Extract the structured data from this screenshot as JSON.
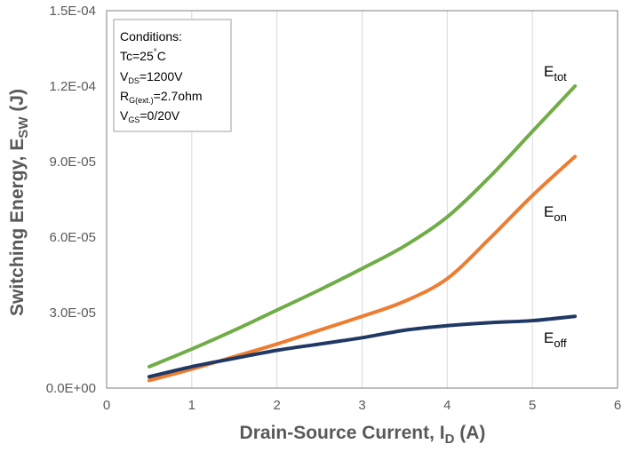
{
  "chart_data": {
    "type": "line",
    "xlabel_main": "Drain-Source Current, I",
    "xlabel_sub": "D",
    "xlabel_tail": " (A)",
    "ylabel_main": "Switching Energy, E",
    "ylabel_sub": "SW",
    "ylabel_tail": " (J)",
    "xlim": [
      0,
      6
    ],
    "ylim": [
      0,
      0.00015
    ],
    "x_ticks": [
      0,
      1,
      2,
      3,
      4,
      5,
      6
    ],
    "x_tick_labels": [
      "0",
      "1",
      "2",
      "3",
      "4",
      "5",
      "6"
    ],
    "y_ticks": [
      0,
      3e-05,
      6e-05,
      9e-05,
      0.00012,
      0.00015
    ],
    "y_tick_labels": [
      "0.0E+00",
      "3.0E-05",
      "6.0E-05",
      "9.0E-05",
      "1.2E-04",
      "1.5E-04"
    ],
    "grid": "vertical",
    "conditions": {
      "title": "Conditions:",
      "lines": [
        {
          "main": "Tc=25",
          "sup": "°",
          "tail": "C"
        },
        {
          "main": "V",
          "sub": "DS",
          "tail": "=1200V"
        },
        {
          "main": "R",
          "sub": "G(ext.)",
          "tail": "=2.7ohm"
        },
        {
          "main": "V",
          "sub": "GS",
          "tail": "=0/20V"
        }
      ]
    },
    "series": [
      {
        "name": "E",
        "sub": "tot",
        "color": "#70ad47",
        "x": [
          0.5,
          1,
          1.5,
          2,
          2.5,
          3,
          3.5,
          4,
          4.5,
          5,
          5.5
        ],
        "y": [
          8.5e-06,
          1.55e-05,
          2.3e-05,
          3.1e-05,
          3.9e-05,
          4.75e-05,
          5.65e-05,
          6.8e-05,
          8.4e-05,
          0.000102,
          0.00012
        ]
      },
      {
        "name": "E",
        "sub": "on",
        "color": "#ed7d31",
        "x": [
          0.5,
          1,
          1.5,
          2,
          2.5,
          3,
          3.5,
          4,
          4.5,
          5,
          5.5
        ],
        "y": [
          3e-06,
          7.5e-06,
          1.25e-05,
          1.75e-05,
          2.3e-05,
          2.85e-05,
          3.45e-05,
          4.35e-05,
          5.95e-05,
          7.65e-05,
          9.2e-05
        ]
      },
      {
        "name": "E",
        "sub": "off",
        "color": "#203864",
        "x": [
          0.5,
          1,
          1.5,
          2,
          2.5,
          3,
          3.5,
          4,
          4.5,
          5,
          5.5
        ],
        "y": [
          4.5e-06,
          8.5e-06,
          1.18e-05,
          1.5e-05,
          1.75e-05,
          2e-05,
          2.3e-05,
          2.48e-05,
          2.6e-05,
          2.68e-05,
          2.85e-05
        ]
      }
    ]
  }
}
